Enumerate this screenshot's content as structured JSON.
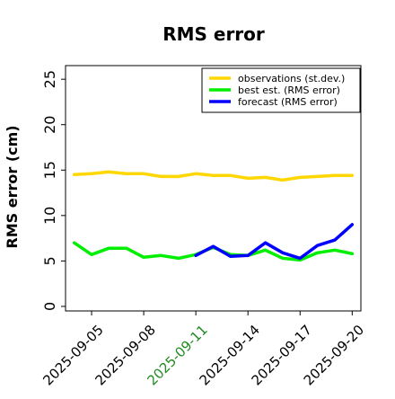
{
  "chart_data": {
    "type": "line",
    "title": "RMS error",
    "ylabel": "RMS error (cm)",
    "xlabel": "",
    "ylim": [
      -0.5,
      26.5
    ],
    "yticks": [
      0,
      5,
      10,
      15,
      20,
      25
    ],
    "xlim": [
      "2025-09-03T12",
      "2025-09-20T12"
    ],
    "xticks": [
      "2025-09-05",
      "2025-09-08",
      "2025-09-11",
      "2025-09-14",
      "2025-09-17",
      "2025-09-20"
    ],
    "highlighted_xtick": "2025-09-11",
    "highlight_color": "#228b22",
    "grid": false,
    "legend_position": "top-right",
    "series": [
      {
        "name": "observations (st.dev.)",
        "color": "#ffd700",
        "x": [
          "2025-09-04",
          "2025-09-05",
          "2025-09-06",
          "2025-09-07",
          "2025-09-08",
          "2025-09-09",
          "2025-09-10",
          "2025-09-11",
          "2025-09-12",
          "2025-09-13",
          "2025-09-14",
          "2025-09-15",
          "2025-09-16",
          "2025-09-17",
          "2025-09-18",
          "2025-09-19",
          "2025-09-20"
        ],
        "values": [
          14.5,
          14.6,
          14.8,
          14.6,
          14.6,
          14.3,
          14.3,
          14.6,
          14.4,
          14.4,
          14.1,
          14.2,
          13.9,
          14.2,
          14.3,
          14.4,
          14.4
        ]
      },
      {
        "name": "best est. (RMS error)",
        "color": "#00ee00",
        "x": [
          "2025-09-04",
          "2025-09-05",
          "2025-09-06",
          "2025-09-07",
          "2025-09-08",
          "2025-09-09",
          "2025-09-10",
          "2025-09-11",
          "2025-09-12",
          "2025-09-13",
          "2025-09-14",
          "2025-09-15",
          "2025-09-16",
          "2025-09-17",
          "2025-09-18",
          "2025-09-19",
          "2025-09-20"
        ],
        "values": [
          7.0,
          5.7,
          6.4,
          6.4,
          5.4,
          5.6,
          5.3,
          5.7,
          6.5,
          5.7,
          5.6,
          6.2,
          5.3,
          5.1,
          5.9,
          6.2,
          5.8
        ]
      },
      {
        "name": "forecast (RMS error)",
        "color": "#0000ff",
        "x": [
          "2025-09-11",
          "2025-09-12",
          "2025-09-13",
          "2025-09-14",
          "2025-09-15",
          "2025-09-16",
          "2025-09-17",
          "2025-09-18",
          "2025-09-19",
          "2025-09-20"
        ],
        "values": [
          5.6,
          6.6,
          5.5,
          5.6,
          7.0,
          5.9,
          5.3,
          6.7,
          7.3,
          9.0
        ]
      }
    ]
  }
}
